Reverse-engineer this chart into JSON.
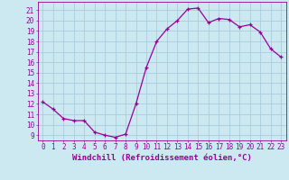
{
  "x": [
    0,
    1,
    2,
    3,
    4,
    5,
    6,
    7,
    8,
    9,
    10,
    11,
    12,
    13,
    14,
    15,
    16,
    17,
    18,
    19,
    20,
    21,
    22,
    23
  ],
  "y": [
    12.2,
    11.5,
    10.6,
    10.4,
    10.4,
    9.3,
    9.0,
    8.8,
    9.1,
    12.0,
    15.5,
    18.0,
    19.2,
    20.0,
    21.1,
    21.2,
    19.8,
    20.2,
    20.1,
    19.4,
    19.6,
    18.9,
    17.3,
    16.5
  ],
  "line_color": "#990099",
  "marker": "+",
  "background_color": "#cce8f0",
  "grid_color": "#aaccdd",
  "ylabel_ticks": [
    9,
    10,
    11,
    12,
    13,
    14,
    15,
    16,
    17,
    18,
    19,
    20,
    21
  ],
  "ylim": [
    8.5,
    21.8
  ],
  "xlim": [
    -0.5,
    23.5
  ],
  "xlabel": "Windchill (Refroidissement éolien,°C)",
  "xtick_labels": [
    "0",
    "1",
    "2",
    "3",
    "4",
    "5",
    "6",
    "7",
    "8",
    "9",
    "10",
    "11",
    "12",
    "13",
    "14",
    "15",
    "16",
    "17",
    "18",
    "19",
    "20",
    "21",
    "22",
    "23"
  ],
  "axis_color": "#990099",
  "tick_color": "#990099",
  "label_fontsize": 6.5,
  "tick_fontsize": 5.5
}
